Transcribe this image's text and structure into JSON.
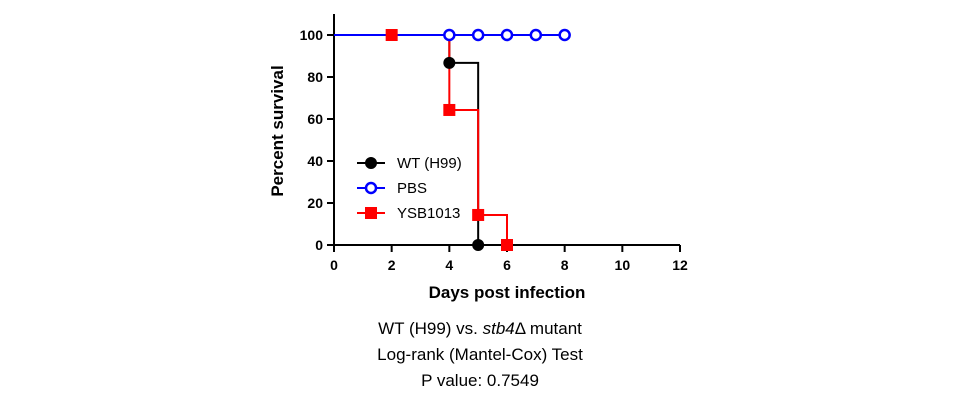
{
  "chart_data": {
    "type": "line",
    "subtype": "kaplan-meier",
    "xlabel": "Days post infection",
    "ylabel": "Percent survival",
    "xlim": [
      0,
      12
    ],
    "ylim": [
      0,
      100
    ],
    "xticks": [
      0,
      2,
      4,
      6,
      8,
      10,
      12
    ],
    "yticks": [
      0,
      20,
      40,
      60,
      80,
      100
    ],
    "legend_position": "center-left",
    "grid": false,
    "series": [
      {
        "name": "WT (H99)",
        "color": "#000000",
        "marker": "filled-circle",
        "steps": [
          [
            0,
            100
          ],
          [
            4,
            100
          ],
          [
            4,
            86.7
          ],
          [
            5,
            86.7
          ],
          [
            5,
            0
          ]
        ],
        "markers": [
          [
            4,
            86.7
          ],
          [
            5,
            0
          ]
        ]
      },
      {
        "name": "PBS",
        "color": "#0000ff",
        "marker": "open-circle",
        "steps": [
          [
            0,
            100
          ],
          [
            8,
            100
          ]
        ],
        "markers": [
          [
            4,
            100
          ],
          [
            5,
            100
          ],
          [
            6,
            100
          ],
          [
            7,
            100
          ],
          [
            8,
            100
          ]
        ]
      },
      {
        "name": "YSB1013",
        "color": "#ff0000",
        "marker": "filled-square",
        "steps": [
          [
            0,
            100
          ],
          [
            4,
            100
          ],
          [
            4,
            64.3
          ],
          [
            5,
            64.3
          ],
          [
            5,
            14.3
          ],
          [
            6,
            14.3
          ],
          [
            6,
            0
          ]
        ],
        "markers": [
          [
            2,
            100
          ],
          [
            4,
            64.3
          ],
          [
            5,
            14.3
          ],
          [
            6,
            0
          ]
        ]
      }
    ]
  },
  "caption": {
    "line1_prefix": "WT (H99) vs. ",
    "line1_italic": "stb4",
    "line1_suffix": "Δ mutant",
    "line2": "Log-rank (Mantel-Cox) Test",
    "line3": "P value: 0.7549"
  }
}
